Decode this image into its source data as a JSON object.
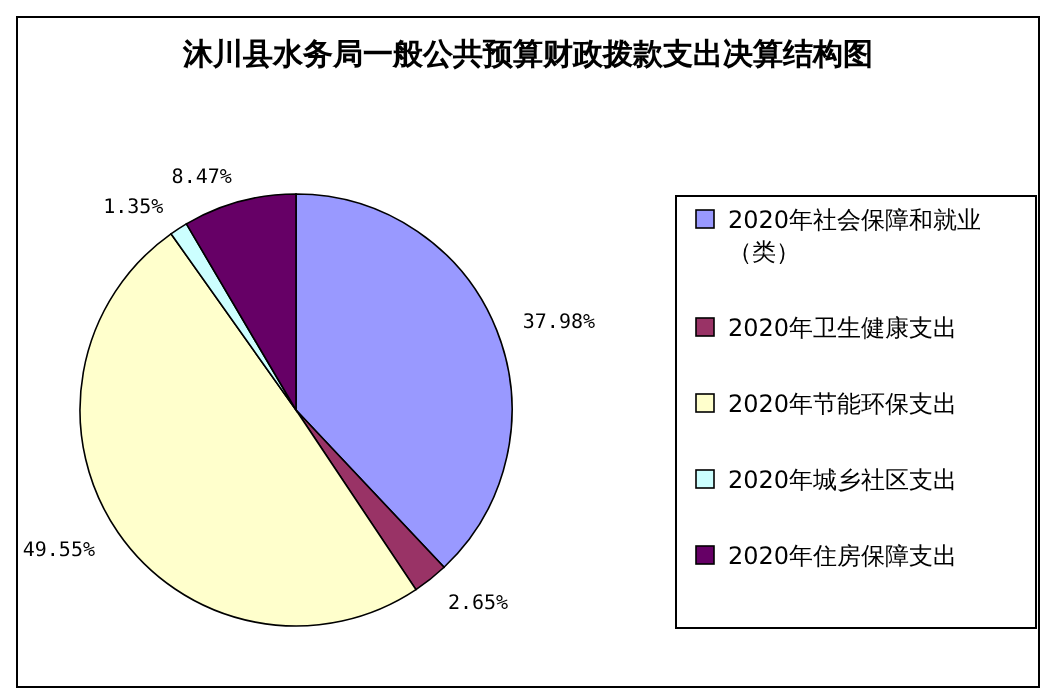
{
  "chart_data": {
    "type": "pie",
    "title": "沐川县水务局一般公共预算财政拨款支出决算结构图",
    "categories": [
      "2020年社会保障和就业（类）",
      "2020年卫生健康支出",
      "2020年节能环保支出",
      "2020年城乡社区支出",
      "2020年住房保障支出"
    ],
    "values": [
      37.98,
      2.65,
      49.55,
      1.35,
      8.47
    ],
    "colors": [
      "#9999ff",
      "#993366",
      "#ffffcc",
      "#ccffff",
      "#660066"
    ],
    "value_labels": [
      "37.98%",
      "2.65%",
      "49.55%",
      "1.35%",
      "8.47%"
    ],
    "legend": "right"
  }
}
